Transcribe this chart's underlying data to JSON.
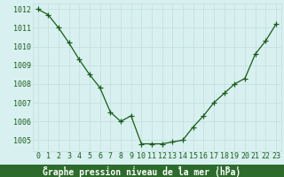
{
  "x": [
    0,
    1,
    2,
    3,
    4,
    5,
    6,
    7,
    8,
    9,
    10,
    11,
    12,
    13,
    14,
    15,
    16,
    17,
    18,
    19,
    20,
    21,
    22,
    23
  ],
  "y": [
    1012.0,
    1011.7,
    1011.0,
    1010.2,
    1009.3,
    1008.5,
    1007.8,
    1006.5,
    1006.0,
    1006.3,
    1004.8,
    1004.8,
    1004.8,
    1004.9,
    1005.0,
    1005.7,
    1006.3,
    1007.0,
    1007.5,
    1008.0,
    1008.3,
    1009.6,
    1010.3,
    1011.2
  ],
  "line_color": "#1a5c1a",
  "marker": "+",
  "bg_color": "#d8f0f0",
  "grid_color": "#c0dede",
  "xlabel": "Graphe pression niveau de la mer (hPa)",
  "xlabel_bg": "#2d6b2d",
  "xlabel_color": "#ffffff",
  "ylim": [
    1004.4,
    1012.3
  ],
  "yticks": [
    1005,
    1006,
    1007,
    1008,
    1009,
    1010,
    1011,
    1012
  ],
  "tick_color": "#1a5c1a",
  "tick_fontsize": 6.0,
  "xlabel_fontsize": 7.0,
  "line_width": 0.9,
  "marker_size": 4
}
